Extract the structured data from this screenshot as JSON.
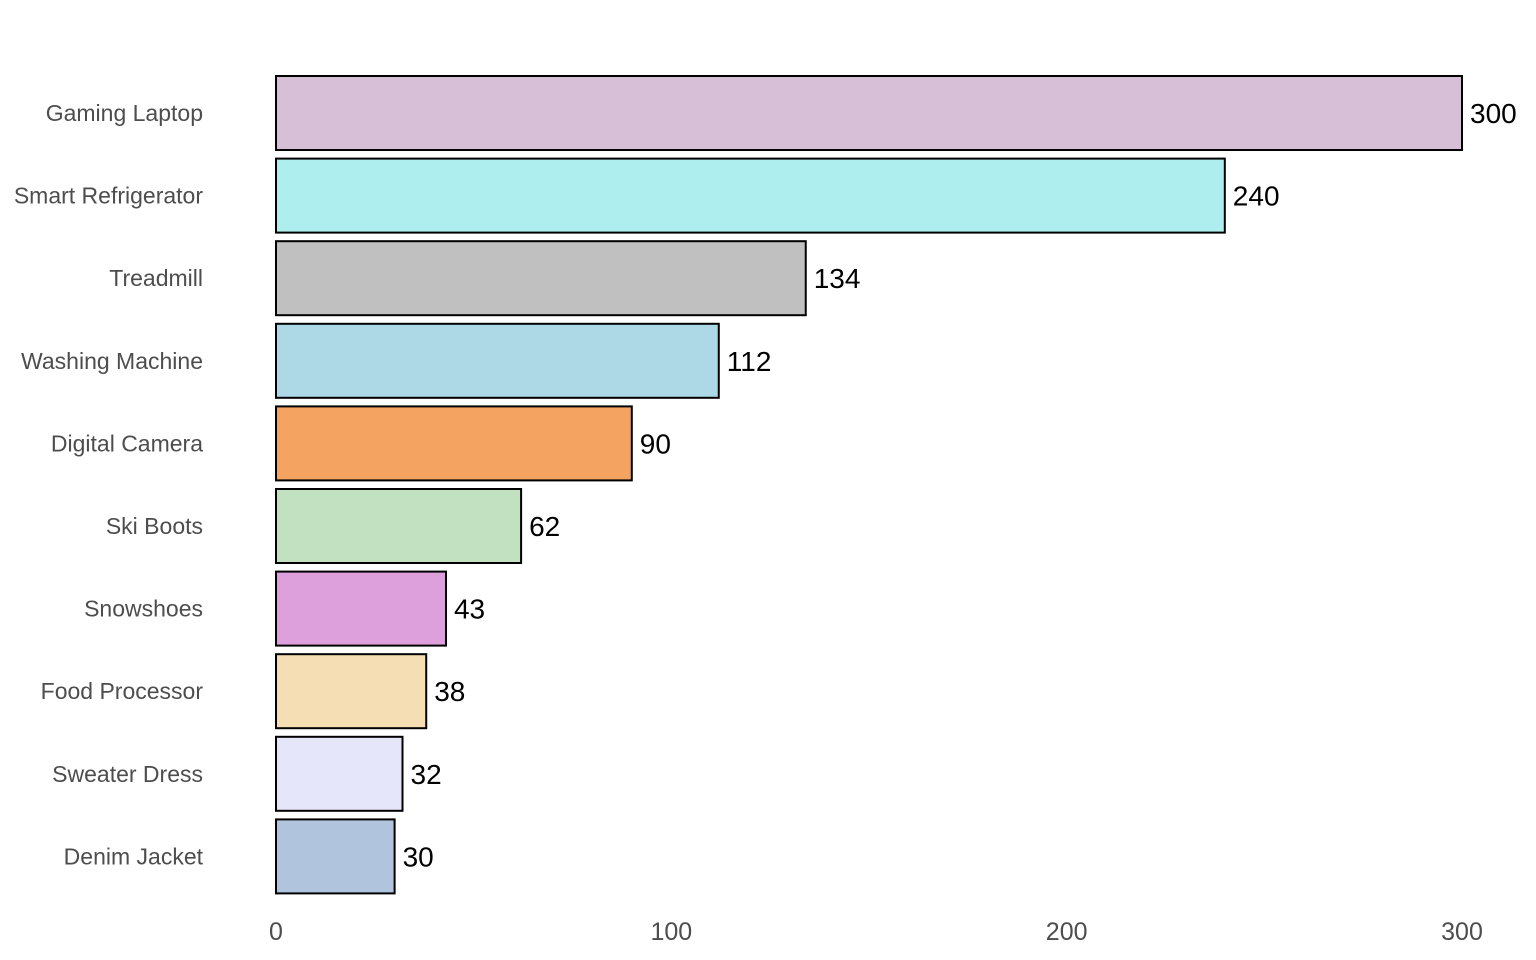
{
  "chart_data": {
    "type": "bar",
    "orientation": "horizontal",
    "categories": [
      "Gaming Laptop",
      "Smart Refrigerator",
      "Treadmill",
      "Washing Machine",
      "Digital Camera",
      "Ski Boots",
      "Snowshoes",
      "Food Processor",
      "Sweater Dress",
      "Denim Jacket"
    ],
    "values": [
      300,
      240,
      134,
      112,
      90,
      62,
      43,
      38,
      32,
      30
    ],
    "colors": [
      "#D8BFD8",
      "#AFEEEE",
      "#C0C0C0",
      "#ADD8E6",
      "#F4A460",
      "#C1E1C1",
      "#DDA0DD",
      "#F5DEB3",
      "#E6E6FA",
      "#B0C4DE"
    ],
    "bar_outline_color": "#000000",
    "xlim": [
      0,
      300
    ],
    "xticks": [
      0,
      100,
      200,
      300
    ],
    "title": "",
    "xlabel": "",
    "ylabel": "",
    "grid": false,
    "legend": false,
    "data_labels": true
  }
}
